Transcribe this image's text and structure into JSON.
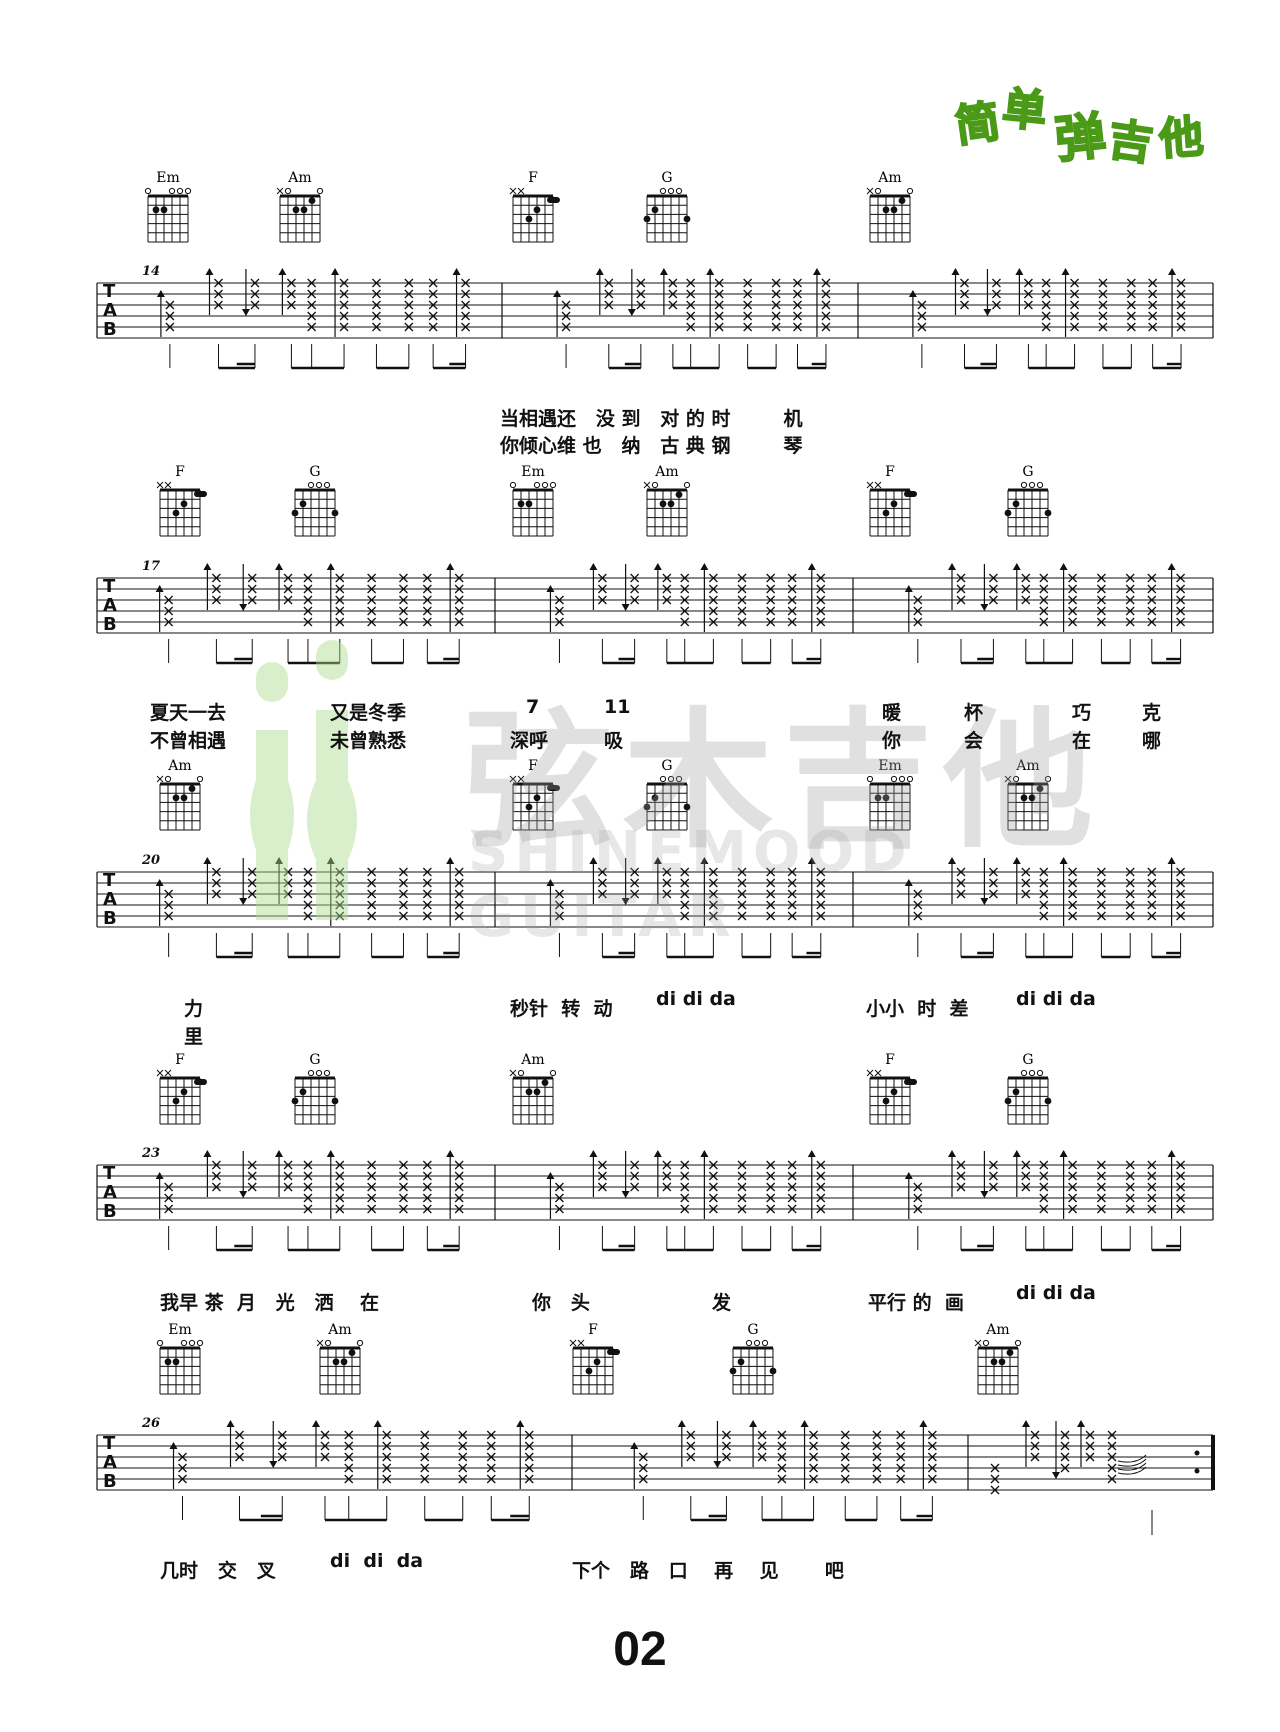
{
  "logo": {
    "chars": [
      "简",
      "单",
      "弹",
      "吉",
      "他"
    ]
  },
  "watermark": {
    "cn": "弦木吉他",
    "en": "SHINEMOOD GUITAR"
  },
  "systems": [
    {
      "measure": "14",
      "chords": [
        [
          "Em"
        ],
        [
          "Am"
        ],
        [
          "F"
        ],
        [
          "G"
        ],
        [
          "Am"
        ]
      ],
      "lyrics": [
        {
          "text": "当相遇还   没 到   对 的 时        机"
        },
        {
          "text": "你倾心维 也   纳   古 典 钢        琴"
        }
      ]
    },
    {
      "measure": "17",
      "chords": [
        [
          "F"
        ],
        [
          "G"
        ],
        [
          "Em"
        ],
        [
          "Am"
        ],
        [
          "F"
        ],
        [
          "G"
        ]
      ],
      "lyrics": [
        {
          "text": "夏天一去"
        },
        {
          "text": "又是冬季"
        },
        {
          "text": "7"
        },
        {
          "text": "11"
        },
        {
          "text": "暖"
        },
        {
          "text": "杯"
        },
        {
          "text": "巧"
        },
        {
          "text": "克"
        },
        {
          "text": "不曾相遇"
        },
        {
          "text": "未曾熟悉"
        },
        {
          "text": "深呼"
        },
        {
          "text": "吸"
        },
        {
          "text": "你"
        },
        {
          "text": "会"
        },
        {
          "text": "在"
        },
        {
          "text": "哪"
        }
      ]
    },
    {
      "measure": "20",
      "chords": [
        [
          "Am"
        ],
        [
          "F"
        ],
        [
          "G"
        ],
        [
          "Em"
        ],
        [
          "Am"
        ]
      ],
      "lyrics": [
        {
          "text": "力"
        },
        {
          "text": "里"
        },
        {
          "text": "秒针  转  动"
        },
        {
          "text": "di di da"
        },
        {
          "text": "小小  时  差"
        },
        {
          "text": "di di da"
        }
      ]
    },
    {
      "measure": "23",
      "chords": [
        [
          "F"
        ],
        [
          "G"
        ],
        [
          "Am"
        ],
        [
          "F"
        ],
        [
          "G"
        ]
      ],
      "lyrics": [
        {
          "text": "我早 茶  月   光   洒    在"
        },
        {
          "text": "你   头"
        },
        {
          "text": "发"
        },
        {
          "text": "平行 的  画"
        },
        {
          "text": "di di da"
        }
      ]
    },
    {
      "measure": "26",
      "chords": [
        [
          "Em"
        ],
        [
          "Am"
        ],
        [
          "F"
        ],
        [
          "G"
        ],
        [
          "Am"
        ]
      ],
      "lyrics": [
        {
          "text": "几时   交   叉"
        },
        {
          "text": "di  di  da"
        },
        {
          "text": "下个   路   口    再    见       吧"
        }
      ]
    }
  ],
  "page_number": "02"
}
